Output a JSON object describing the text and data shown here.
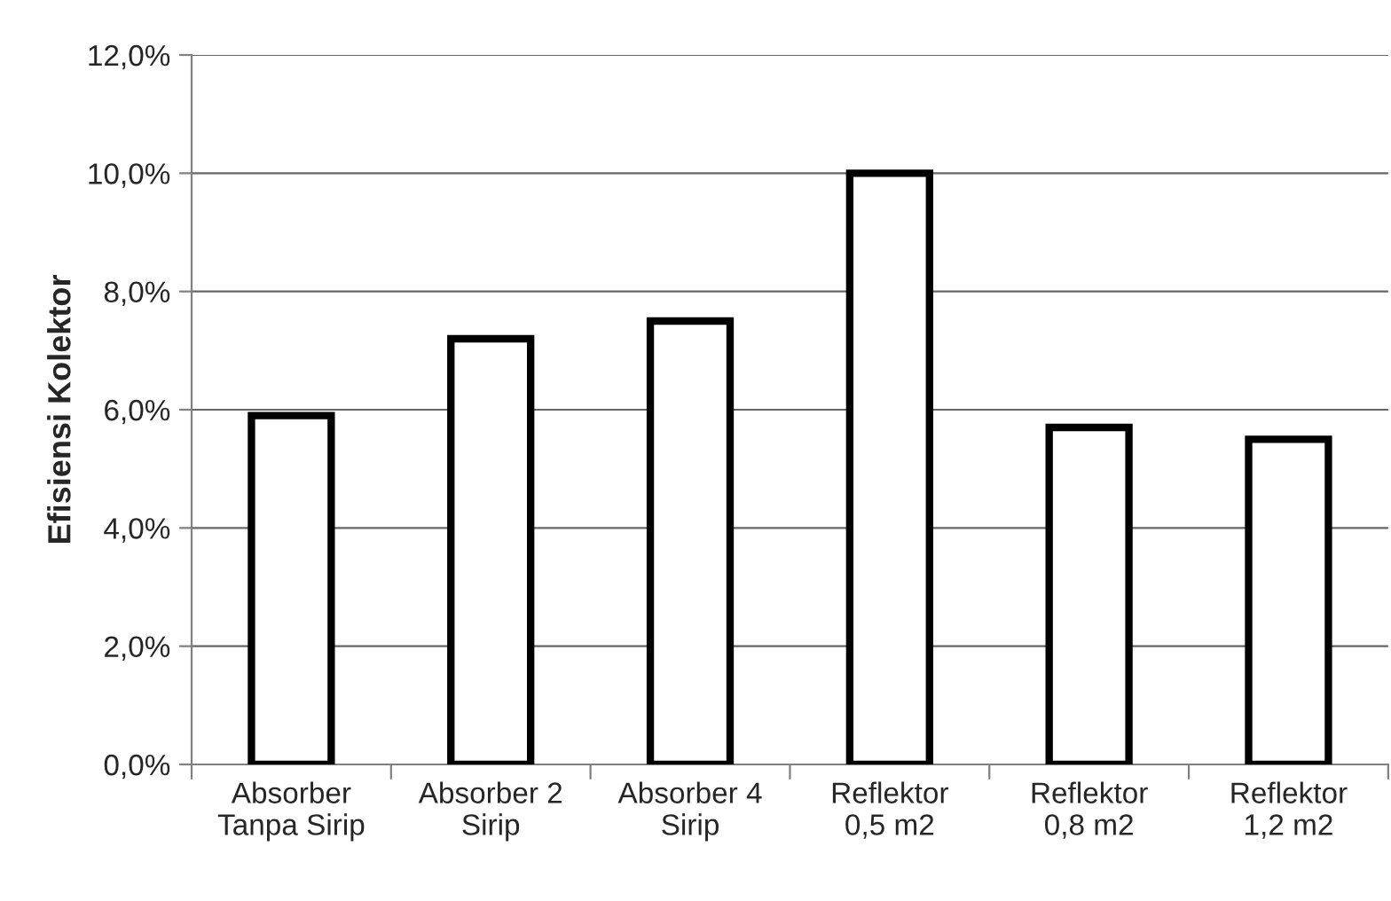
{
  "chart_data": {
    "type": "bar",
    "ylabel": "Efisiensi Kolektor",
    "categories": [
      "Absorber\nTanpa Sirip",
      "Absorber 2\nSirip",
      "Absorber 4\nSirip",
      "Reflektor\n0,5 m2",
      "Reflektor\n0,8 m2",
      "Reflektor\n1,2 m2"
    ],
    "values": [
      5.9,
      7.2,
      7.5,
      10.0,
      5.7,
      5.5
    ],
    "color": "#000000",
    "ylim": [
      0,
      12
    ],
    "yticks": [
      {
        "value": 0,
        "label": "0,0%"
      },
      {
        "value": 2,
        "label": "2,0%"
      },
      {
        "value": 4,
        "label": "4,0%"
      },
      {
        "value": 6,
        "label": "6,0%"
      },
      {
        "value": 8,
        "label": "8,0%"
      },
      {
        "value": 10,
        "label": "10,0%"
      },
      {
        "value": 12,
        "label": "12,0%"
      }
    ],
    "grid": "y"
  }
}
